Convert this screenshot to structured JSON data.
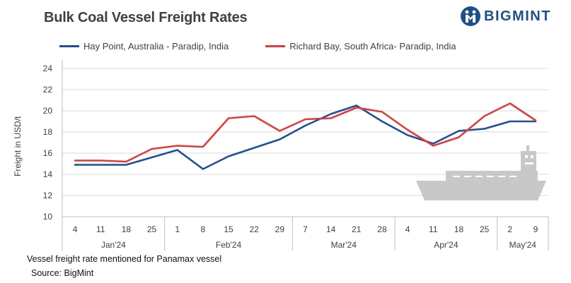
{
  "title": "Bulk Coal Vessel Freight Rates",
  "brand": {
    "name": "BIGMINT",
    "color": "#1f4e8c"
  },
  "note": "Vessel freight rate mentioned for Panamax vessel",
  "source": "Source: BigMint",
  "chart_data": {
    "type": "line",
    "title": "Bulk Coal Vessel Freight Rates",
    "xlabel": "",
    "ylabel": "Freight in USD/t",
    "ylim": [
      10,
      24
    ],
    "yticks": [
      10,
      12,
      14,
      16,
      18,
      20,
      22,
      24
    ],
    "grid": true,
    "legend_position": "top",
    "categories": [
      "4",
      "11",
      "18",
      "25",
      "1",
      "8",
      "15",
      "22",
      "29",
      "7",
      "14",
      "21",
      "28",
      "4",
      "11",
      "18",
      "25",
      "2",
      "9"
    ],
    "month_groups": [
      {
        "label": "Jan'24",
        "start": 0,
        "end": 3
      },
      {
        "label": "Feb'24",
        "start": 4,
        "end": 8
      },
      {
        "label": "Mar'24",
        "start": 9,
        "end": 12
      },
      {
        "label": "Apr'24",
        "start": 13,
        "end": 16
      },
      {
        "label": "May'24",
        "start": 17,
        "end": 18
      }
    ],
    "series": [
      {
        "name": "Hay Point, Australia - Paradip, India",
        "color": "#1f4e9a",
        "values": [
          14.9,
          14.9,
          14.9,
          15.6,
          16.3,
          14.5,
          15.7,
          16.5,
          17.3,
          18.6,
          19.7,
          20.5,
          19.0,
          17.7,
          16.9,
          18.1,
          18.3,
          19.0,
          19.0
        ]
      },
      {
        "name": "Richard Bay, South Africa- Paradip, India",
        "color": "#e03c3c",
        "values": [
          15.3,
          15.3,
          15.2,
          16.4,
          16.7,
          16.6,
          19.3,
          19.5,
          18.1,
          19.2,
          19.3,
          20.3,
          19.9,
          18.2,
          16.7,
          17.5,
          19.5,
          20.7,
          19.1
        ]
      }
    ]
  }
}
